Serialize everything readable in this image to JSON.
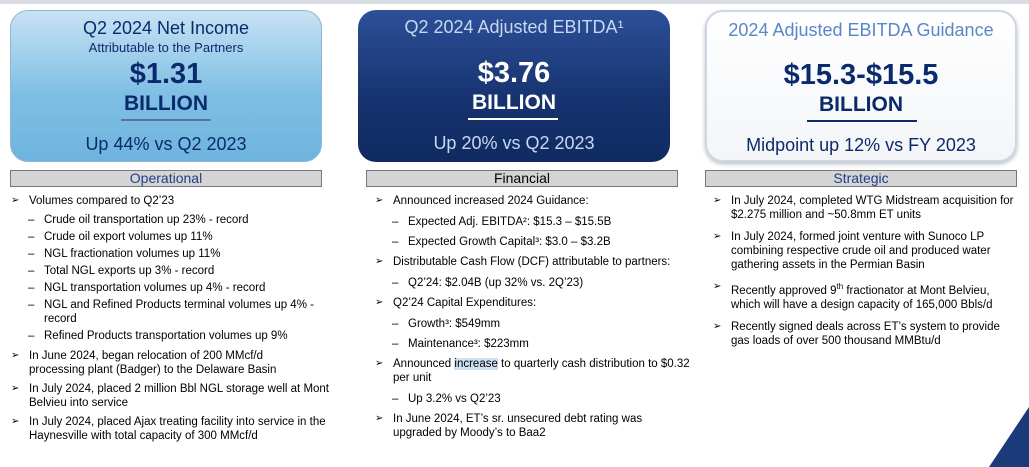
{
  "cards": [
    {
      "line1": "Q2 2024 Net Income",
      "line1b": "Attributable to the Partners",
      "value": "$1.31",
      "unit": "BILLION",
      "change": "Up 44% vs Q2 2023"
    },
    {
      "line1": "Q2 2024 Adjusted EBITDA¹",
      "value": "$3.76",
      "unit": "BILLION",
      "change": "Up 20% vs Q2 2023"
    },
    {
      "line1": "2024 Adjusted EBITDA Guidance",
      "value": "$15.3-$15.5",
      "unit": "BILLION",
      "change": "Midpoint up 12% vs FY 2023"
    }
  ],
  "sections": {
    "operational": {
      "header": "Operational",
      "b1": "Volumes compared to Q2’23",
      "b1_subs": [
        "Crude oil transportation up 23% - record",
        "Crude oil export volumes up 11%",
        "NGL fractionation volumes up 11%",
        "Total NGL exports up 3% - record",
        "NGL transportation volumes up 4% - record",
        "NGL and Refined Products terminal volumes up 4% - record",
        "Refined Products transportation volumes up 9%"
      ],
      "b2": "In June 2024, began relocation of 200 MMcf/d processing plant (Badger) to the Delaware Basin",
      "b3": "In July 2024, placed 2 million Bbl NGL storage well at Mont Belvieu into service",
      "b4": "In July 2024, placed Ajax treating facility into service in the Haynesville with total capacity of 300 MMcf/d"
    },
    "financial": {
      "header": "Financial",
      "b1": "Announced increased 2024 Guidance:",
      "b1_subs": [
        "Expected Adj. EBITDA²: $15.3 – $15.5B",
        "Expected Growth Capital³: $3.0 – $3.2B"
      ],
      "b2": "Distributable Cash Flow (DCF) attributable to partners:",
      "b2_subs": [
        "Q2’24: $2.04B (up 32% vs. 2Q’23)"
      ],
      "b3": "Q2’24 Capital Expenditures:",
      "b3_subs": [
        "Growth³: $549mm",
        "Maintenance³: $223mm"
      ],
      "b4_pre": "Announced ",
      "b4_hl": "increase",
      "b4_post": " to quarterly cash distribution to $0.32 per unit",
      "b4_subs": [
        "Up 3.2% vs Q2’23"
      ],
      "b5": "In June 2024, ET’s sr. unsecured debt rating was upgraded by Moody’s to Baa2"
    },
    "strategic": {
      "header": "Strategic",
      "b1": "In July 2024, completed WTG Midstream acquisition for $2.275 million and ~50.8mm ET units",
      "b2": "In July 2024, formed joint venture with Sunoco LP combining respective crude oil and produced water gathering assets in the Permian Basin",
      "b3_pre": "Recently approved 9",
      "b3_sup": "th",
      "b3_post": " fractionator at Mont Belvieu, which will have a design capacity of 165,000 Bbls/d",
      "b4": "Recently signed deals across ET’s system to provide gas loads of over 500 thousand MMBtu/d"
    }
  }
}
